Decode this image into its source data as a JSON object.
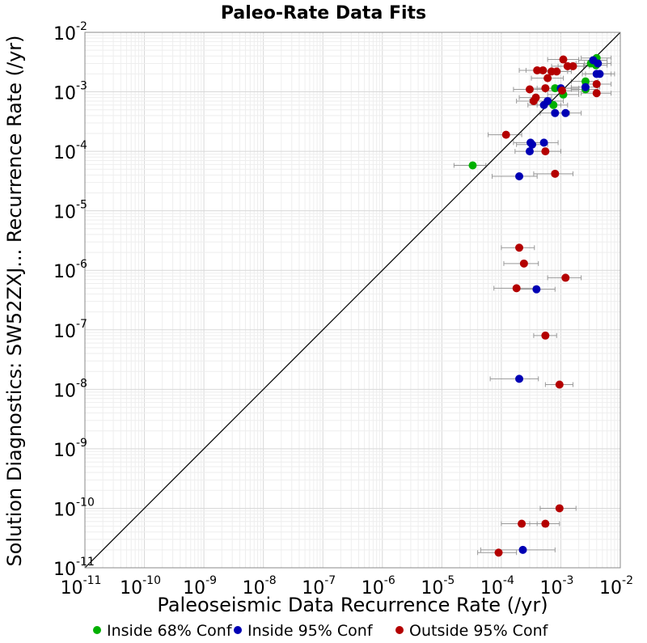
{
  "chart_data": {
    "type": "scatter",
    "title": "Paleo-Rate Data Fits",
    "xlabel": "Paleoseismic Data Recurrence Rate (/yr)",
    "ylabel": "Solution Diagnostics: SW52ZXJ... Recurrence Rate (/yr)",
    "x_scale": "log",
    "y_scale": "log",
    "xlim": [
      1e-11,
      0.01
    ],
    "ylim": [
      1e-11,
      0.01
    ],
    "x_ticks": [
      {
        "base": "10",
        "exp": "-11"
      },
      {
        "base": "10",
        "exp": "-10"
      },
      {
        "base": "10",
        "exp": "-9"
      },
      {
        "base": "10",
        "exp": "-8"
      },
      {
        "base": "10",
        "exp": "-7"
      },
      {
        "base": "10",
        "exp": "-6"
      },
      {
        "base": "10",
        "exp": "-5"
      },
      {
        "base": "10",
        "exp": "-4"
      },
      {
        "base": "10",
        "exp": "-3"
      },
      {
        "base": "10",
        "exp": "-2"
      }
    ],
    "y_ticks": [
      {
        "base": "10",
        "exp": "-11"
      },
      {
        "base": "10",
        "exp": "-10"
      },
      {
        "base": "10",
        "exp": "-9"
      },
      {
        "base": "10",
        "exp": "-8"
      },
      {
        "base": "10",
        "exp": "-7"
      },
      {
        "base": "10",
        "exp": "-6"
      },
      {
        "base": "10",
        "exp": "-5"
      },
      {
        "base": "10",
        "exp": "-4"
      },
      {
        "base": "10",
        "exp": "-3"
      },
      {
        "base": "10",
        "exp": "-2"
      }
    ],
    "grid": true,
    "reference_line": "y = x",
    "legend_position": "bottom",
    "series": [
      {
        "name": "Inside 68% Conf",
        "color": "#00b000",
        "points": [
          {
            "x": 3.3e-05,
            "y": 5.8e-05,
            "xlo": 1.6e-05,
            "xhi": 5.5e-05
          },
          {
            "x": 0.004,
            "y": 0.0037,
            "xlo": 0.0022,
            "xhi": 0.007
          },
          {
            "x": 0.0032,
            "y": 0.003,
            "xlo": 0.0018,
            "xhi": 0.006
          },
          {
            "x": 0.0039,
            "y": 0.0028,
            "xlo": 0.0025,
            "xhi": 0.006
          },
          {
            "x": 0.0026,
            "y": 0.0015,
            "xlo": 0.0015,
            "xhi": 0.0042
          },
          {
            "x": 0.0026,
            "y": 0.0011,
            "xlo": 0.0015,
            "xhi": 0.0042
          },
          {
            "x": 0.0008,
            "y": 0.00115,
            "xlo": 0.0004,
            "xhi": 0.0015
          },
          {
            "x": 0.0011,
            "y": 0.0009,
            "xlo": 0.0006,
            "xhi": 0.002
          },
          {
            "x": 0.00075,
            "y": 0.0006,
            "xlo": 0.0004,
            "xhi": 0.0013
          }
        ]
      },
      {
        "name": "Inside 95% Conf",
        "color": "#0000b4",
        "points": [
          {
            "x": 0.0035,
            "y": 0.0034,
            "xlo": 0.002,
            "xhi": 0.006
          },
          {
            "x": 0.0042,
            "y": 0.003,
            "xlo": 0.0025,
            "xhi": 0.007
          },
          {
            "x": 0.004,
            "y": 0.002,
            "xlo": 0.0023,
            "xhi": 0.007
          },
          {
            "x": 0.0045,
            "y": 0.002,
            "xlo": 0.0026,
            "xhi": 0.008
          },
          {
            "x": 0.0026,
            "y": 0.0012,
            "xlo": 0.0015,
            "xhi": 0.0045
          },
          {
            "x": 0.001,
            "y": 0.00115,
            "xlo": 0.0005,
            "xhi": 0.002
          },
          {
            "x": 0.0006,
            "y": 0.0007,
            "xlo": 0.0003,
            "xhi": 0.0011
          },
          {
            "x": 0.00052,
            "y": 0.0006,
            "xlo": 0.00028,
            "xhi": 0.001
          },
          {
            "x": 0.0012,
            "y": 0.00044,
            "xlo": 0.0007,
            "xhi": 0.0022
          },
          {
            "x": 0.0008,
            "y": 0.00044,
            "xlo": 0.00045,
            "xhi": 0.0014
          },
          {
            "x": 0.00031,
            "y": 0.00014,
            "xlo": 0.00016,
            "xhi": 0.00055
          },
          {
            "x": 0.00052,
            "y": 0.00014,
            "xlo": 0.0003,
            "xhi": 0.0009
          },
          {
            "x": 0.00033,
            "y": 0.00013,
            "xlo": 0.00018,
            "xhi": 0.0006
          },
          {
            "x": 0.0003,
            "y": 0.0001,
            "xlo": 0.00017,
            "xhi": 0.0005
          },
          {
            "x": 0.0002,
            "y": 3.8e-05,
            "xlo": 7e-05,
            "xhi": 0.0004
          },
          {
            "x": 0.00039,
            "y": 4.8e-07,
            "xlo": 0.00018,
            "xhi": 0.0008
          },
          {
            "x": 0.0002,
            "y": 1.5e-08,
            "xlo": 6.5e-05,
            "xhi": 0.00042
          },
          {
            "x": 0.00023,
            "y": 2e-11,
            "xlo": 4.5e-05,
            "xhi": 0.0008
          }
        ]
      },
      {
        "name": "Outside 95% Conf",
        "color": "#b40000",
        "points": [
          {
            "x": 0.0011,
            "y": 0.0035,
            "xlo": 0.0006,
            "xhi": 0.002
          },
          {
            "x": 0.0013,
            "y": 0.0027,
            "xlo": 0.0007,
            "xhi": 0.0024
          },
          {
            "x": 0.0016,
            "y": 0.0027,
            "xlo": 0.0009,
            "xhi": 0.003
          },
          {
            "x": 0.0004,
            "y": 0.0023,
            "xlo": 0.0002,
            "xhi": 0.0008
          },
          {
            "x": 0.0005,
            "y": 0.0023,
            "xlo": 0.00026,
            "xhi": 0.0009
          },
          {
            "x": 0.0007,
            "y": 0.0022,
            "xlo": 0.00038,
            "xhi": 0.0013
          },
          {
            "x": 0.00085,
            "y": 0.0022,
            "xlo": 0.00045,
            "xhi": 0.0015
          },
          {
            "x": 0.0006,
            "y": 0.0017,
            "xlo": 0.00032,
            "xhi": 0.0011
          },
          {
            "x": 0.004,
            "y": 0.00135,
            "xlo": 0.0023,
            "xhi": 0.007
          },
          {
            "x": 0.0003,
            "y": 0.0011,
            "xlo": 0.00016,
            "xhi": 0.00055
          },
          {
            "x": 0.00055,
            "y": 0.00115,
            "xlo": 0.0003,
            "xhi": 0.001
          },
          {
            "x": 0.00105,
            "y": 0.00105,
            "xlo": 0.00055,
            "xhi": 0.002
          },
          {
            "x": 0.004,
            "y": 0.00095,
            "xlo": 0.0022,
            "xhi": 0.007
          },
          {
            "x": 0.00038,
            "y": 0.0008,
            "xlo": 0.0002,
            "xhi": 0.0007
          },
          {
            "x": 0.00035,
            "y": 0.0007,
            "xlo": 0.00018,
            "xhi": 0.00065
          },
          {
            "x": 0.00012,
            "y": 0.00019,
            "xlo": 6e-05,
            "xhi": 0.00022
          },
          {
            "x": 0.00055,
            "y": 0.0001,
            "xlo": 0.0003,
            "xhi": 0.001
          },
          {
            "x": 0.0008,
            "y": 4.2e-05,
            "xlo": 0.00035,
            "xhi": 0.0016
          },
          {
            "x": 0.0002,
            "y": 2.4e-06,
            "xlo": 0.0001,
            "xhi": 0.00036
          },
          {
            "x": 0.00024,
            "y": 1.3e-06,
            "xlo": 0.00011,
            "xhi": 0.00042
          },
          {
            "x": 0.0012,
            "y": 7.5e-07,
            "xlo": 0.0006,
            "xhi": 0.0022
          },
          {
            "x": 0.00018,
            "y": 5e-07,
            "xlo": 7.5e-05,
            "xhi": 0.00035
          },
          {
            "x": 0.00055,
            "y": 8e-08,
            "xlo": 0.00035,
            "xhi": 0.00085
          },
          {
            "x": 0.00095,
            "y": 1.2e-08,
            "xlo": 0.00055,
            "xhi": 0.0016
          },
          {
            "x": 0.00095,
            "y": 1e-10,
            "xlo": 0.00045,
            "xhi": 0.0018
          },
          {
            "x": 0.00055,
            "y": 5.5e-11,
            "xlo": 0.0003,
            "xhi": 0.00095
          },
          {
            "x": 0.00022,
            "y": 5.5e-11,
            "xlo": 0.0001,
            "xhi": 0.0004
          },
          {
            "x": 9e-05,
            "y": 1.8e-11,
            "xlo": 4e-05,
            "xhi": 0.00018
          }
        ]
      }
    ]
  }
}
